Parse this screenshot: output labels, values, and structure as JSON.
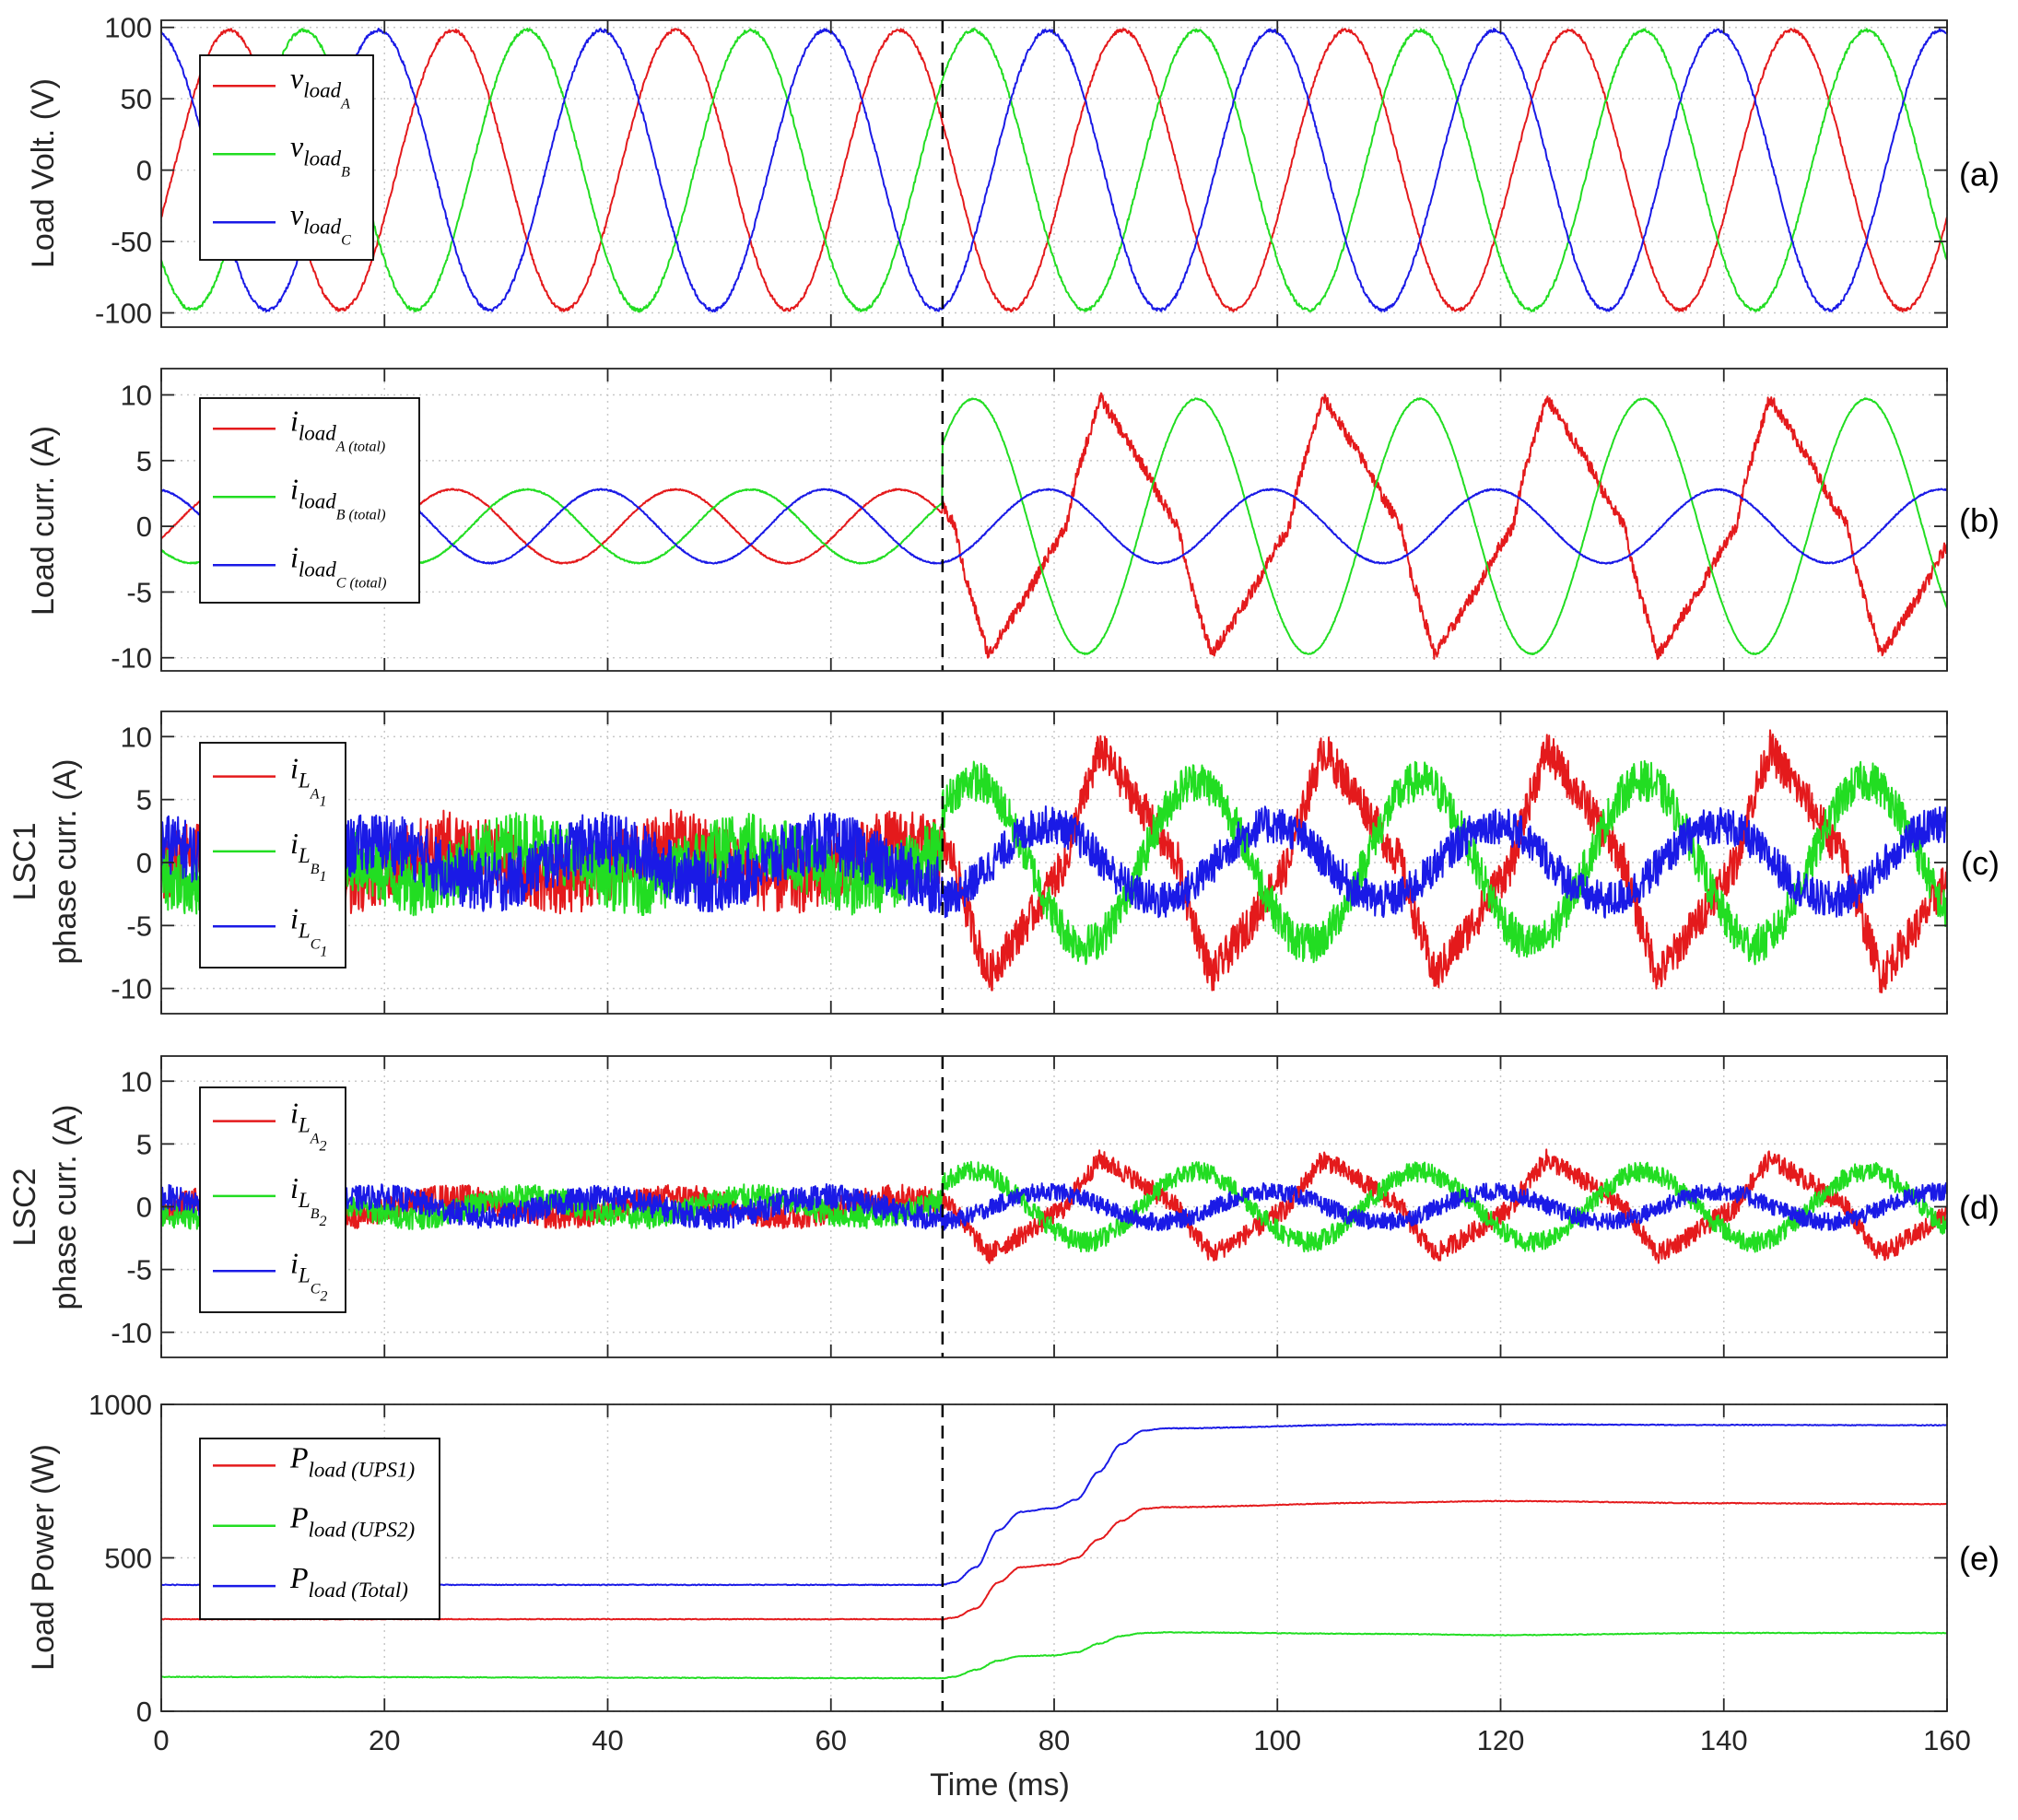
{
  "colors": {
    "phase_a": "#e41a1c",
    "phase_b": "#22dd22",
    "phase_c": "#1a1ae6",
    "axis": "#262626",
    "grid": "#c8c8c8"
  },
  "xaxis": {
    "label": "Time (ms)",
    "range": [
      0,
      160
    ],
    "ticks": [
      "0",
      "20",
      "40",
      "60",
      "80",
      "100",
      "120",
      "140",
      "160"
    ]
  },
  "event_marker_ms": 70,
  "chart_data": [
    {
      "id": "a",
      "type": "line",
      "panel_label": "(a)",
      "ylabel": [
        "Load Volt. (V)"
      ],
      "ylim": [
        -110,
        105
      ],
      "yticks": [
        -100,
        -50,
        0,
        50,
        100
      ],
      "ytick_labels": [
        "-100",
        "-50",
        "0",
        "50",
        "100"
      ],
      "grid": true,
      "legend_position": "top-left",
      "x_range_ms": [
        0,
        160
      ],
      "series": [
        {
          "name": "v_load_A",
          "label_main": "v",
          "label_sub": "load",
          "label_subsub": "A",
          "waveform": "sine",
          "amplitude": 98,
          "frequency_hz": 50,
          "phase_deg": -20,
          "noise": 1.2
        },
        {
          "name": "v_load_B",
          "label_main": "v",
          "label_sub": "load",
          "label_subsub": "B",
          "waveform": "sine",
          "amplitude": 98,
          "frequency_hz": 50,
          "phase_deg": -140,
          "noise": 1.2
        },
        {
          "name": "v_load_C",
          "label_main": "v",
          "label_sub": "load",
          "label_subsub": "C",
          "waveform": "sine",
          "amplitude": 98,
          "frequency_hz": 50,
          "phase_deg": 100,
          "noise": 1.2
        }
      ]
    },
    {
      "id": "b",
      "type": "line",
      "panel_label": "(b)",
      "ylabel": [
        "Load curr. (A)"
      ],
      "ylim": [
        -11,
        12
      ],
      "yticks": [
        -10,
        -5,
        0,
        5,
        10
      ],
      "ytick_labels": [
        "-10",
        "-5",
        "0",
        "5",
        "10"
      ],
      "grid": true,
      "legend_position": "top-left",
      "x_range_ms": [
        0,
        160
      ],
      "step_ms": 70,
      "series": [
        {
          "name": "i_load_A (total)",
          "label_main": "i",
          "label_sub": "load",
          "label_subsub": "A (total)",
          "amp_before": 2.8,
          "amp_after": 9.8,
          "phase_deg": -20,
          "after_waveform": "rectified",
          "noise_before": 0.05,
          "noise_after": 0.5
        },
        {
          "name": "i_load_B (total)",
          "label_main": "i",
          "label_sub": "load",
          "label_subsub": "B (total)",
          "amp_before": 2.8,
          "amp_after": 9.7,
          "phase_deg": -140,
          "after_waveform": "sine",
          "noise_before": 0.05,
          "noise_after": 0.05
        },
        {
          "name": "i_load_C (total)",
          "label_main": "i",
          "label_sub": "load",
          "label_subsub": "C (total)",
          "amp_before": 2.8,
          "amp_after": 2.8,
          "phase_deg": 100,
          "after_waveform": "sine",
          "noise_before": 0.05,
          "noise_after": 0.05
        }
      ]
    },
    {
      "id": "c",
      "type": "line",
      "panel_label": "(c)",
      "ylabel": [
        "LSC1",
        "phase curr. (A)"
      ],
      "ylim": [
        -12,
        12
      ],
      "yticks": [
        -10,
        -5,
        0,
        5,
        10
      ],
      "ytick_labels": [
        "-10",
        "-5",
        "0",
        "5",
        "10"
      ],
      "grid": true,
      "legend_position": "top-left",
      "x_range_ms": [
        0,
        160
      ],
      "step_ms": 70,
      "series": [
        {
          "name": "i_L_A1",
          "label_main": "i",
          "label_sub": "L",
          "label_subsub": "A",
          "label_subsubsub": "1",
          "amp_before": 1.6,
          "amp_after": 9.0,
          "phase_deg": -20,
          "after_waveform": "rectified",
          "noise_before": 2.6,
          "noise_after": 1.6
        },
        {
          "name": "i_L_B1",
          "label_main": "i",
          "label_sub": "L",
          "label_subsub": "B",
          "label_subsubsub": "1",
          "amp_before": 1.6,
          "amp_after": 6.5,
          "phase_deg": -140,
          "after_waveform": "sine",
          "noise_before": 2.6,
          "noise_after": 1.6
        },
        {
          "name": "i_L_C1",
          "label_main": "i",
          "label_sub": "L",
          "label_subsub": "C",
          "label_subsubsub": "1",
          "amp_before": 1.6,
          "amp_after": 3.0,
          "phase_deg": 100,
          "after_waveform": "sine",
          "noise_before": 2.4,
          "noise_after": 1.5
        }
      ]
    },
    {
      "id": "d",
      "type": "line",
      "panel_label": "(d)",
      "ylabel": [
        "LSC2",
        "phase curr. (A)"
      ],
      "ylim": [
        -12,
        12
      ],
      "yticks": [
        -10,
        -5,
        0,
        5,
        10
      ],
      "ytick_labels": [
        "-10",
        "-5",
        "0",
        "5",
        "10"
      ],
      "grid": true,
      "legend_position": "top-left",
      "x_range_ms": [
        0,
        160
      ],
      "step_ms": 70,
      "series": [
        {
          "name": "i_L_A2",
          "label_main": "i",
          "label_sub": "L",
          "label_subsub": "A",
          "label_subsubsub": "2",
          "amp_before": 0.8,
          "amp_after": 3.8,
          "phase_deg": -20,
          "after_waveform": "rectified",
          "noise_before": 1.0,
          "noise_after": 0.8
        },
        {
          "name": "i_L_B2",
          "label_main": "i",
          "label_sub": "L",
          "label_subsub": "B",
          "label_subsubsub": "2",
          "amp_before": 0.8,
          "amp_after": 2.8,
          "phase_deg": -140,
          "after_waveform": "sine",
          "noise_before": 1.0,
          "noise_after": 0.8
        },
        {
          "name": "i_L_C2",
          "label_main": "i",
          "label_sub": "L",
          "label_subsub": "C",
          "label_subsubsub": "2",
          "amp_before": 0.8,
          "amp_after": 1.2,
          "phase_deg": 100,
          "after_waveform": "sine",
          "noise_before": 1.0,
          "noise_after": 0.7
        }
      ]
    },
    {
      "id": "e",
      "type": "line",
      "panel_label": "(e)",
      "ylabel": [
        "Load Power (W)"
      ],
      "ylim": [
        0,
        1000
      ],
      "yticks": [
        0,
        500,
        1000
      ],
      "ytick_labels": [
        "0",
        "500",
        "1000"
      ],
      "grid": true,
      "legend_position": "top-left",
      "x_range_ms": [
        0,
        160
      ],
      "series": [
        {
          "name": "P_load (UPS1)",
          "label_main": "P",
          "label_sub": "load (UPS1)",
          "x": [
            0,
            70,
            71,
            73,
            75,
            77,
            80,
            82,
            84,
            86,
            88,
            90,
            110,
            120,
            140,
            160
          ],
          "y": [
            300,
            300,
            305,
            335,
            420,
            470,
            478,
            500,
            560,
            620,
            660,
            665,
            680,
            685,
            678,
            675
          ]
        },
        {
          "name": "P_load (UPS2)",
          "label_main": "P",
          "label_sub": "load (UPS2)",
          "x": [
            0,
            70,
            71,
            73,
            75,
            77,
            80,
            82,
            84,
            86,
            88,
            90,
            110,
            120,
            140,
            160
          ],
          "y": [
            112,
            108,
            112,
            135,
            165,
            180,
            182,
            192,
            220,
            245,
            255,
            257,
            252,
            248,
            255,
            255
          ]
        },
        {
          "name": "P_load (Total)",
          "label_main": "P",
          "label_sub": "load (Total)",
          "x": [
            0,
            70,
            71,
            73,
            75,
            77,
            80,
            82,
            84,
            86,
            88,
            90,
            110,
            120,
            140,
            160
          ],
          "y": [
            412,
            412,
            420,
            470,
            590,
            650,
            662,
            690,
            780,
            870,
            915,
            922,
            935,
            935,
            933,
            932
          ]
        }
      ]
    }
  ]
}
